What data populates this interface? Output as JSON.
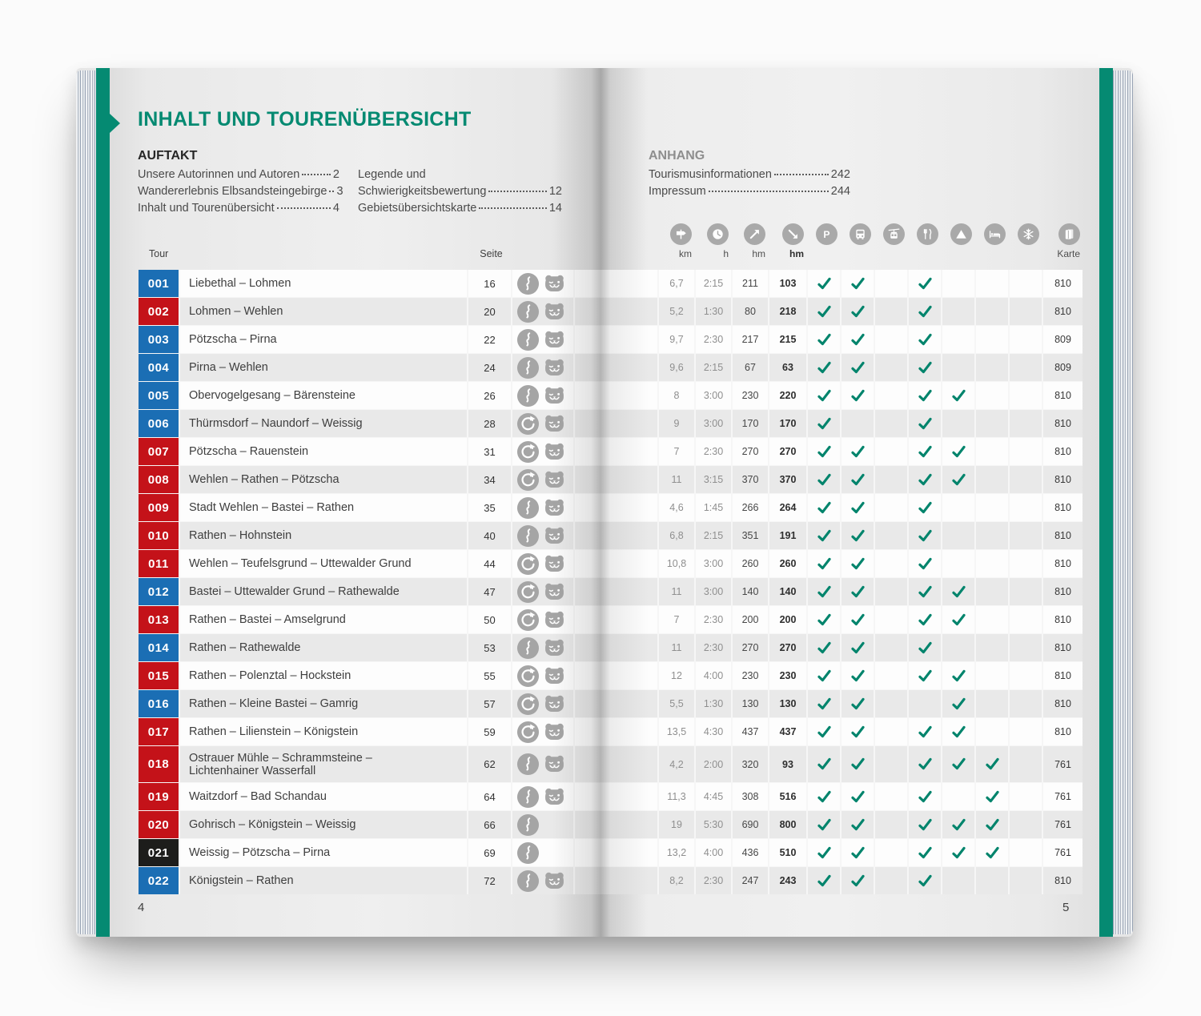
{
  "page": {
    "title": "INHALT UND TOURENÜBERSICHT",
    "left_page_number": "4",
    "right_page_number": "5"
  },
  "toc": {
    "auftakt_heading": "AUFTAKT",
    "col1": [
      {
        "label": "Unsere Autorinnen und Autoren",
        "page": "2"
      },
      {
        "label": "Wandererlebnis Elbsandsteingebirge",
        "page": "3"
      },
      {
        "label": "Inhalt und Tourenübersicht",
        "page": "4"
      }
    ],
    "col2_intro": "Legende und",
    "col2": [
      {
        "label": "Schwierigkeitsbewertung",
        "page": "12"
      },
      {
        "label": "Gebietsübersichtskarte",
        "page": "14"
      }
    ],
    "anhang_heading": "ANHANG",
    "anhang": [
      {
        "label": "Tourismusinformationen",
        "page": "242"
      },
      {
        "label": "Impressum",
        "page": "244"
      }
    ]
  },
  "table": {
    "tour_header": "Tour",
    "seite_header": "Seite",
    "metric_headers": [
      "km",
      "h",
      "hm",
      "hm"
    ],
    "karte_header": "Karte",
    "metric_icons": [
      "signpost",
      "clock",
      "ascent-arrow",
      "descent-arrow"
    ],
    "amenity_icons": [
      "parking",
      "bus",
      "cable-car",
      "restaurant",
      "mountain-peak",
      "bed",
      "snowflake"
    ],
    "karte_icon": "map",
    "rows": [
      {
        "nr": "001",
        "color": "blue",
        "name": "Liebethal – Lohmen",
        "seite": "16",
        "icons": [
          "linear",
          "bear"
        ],
        "km": "6,7",
        "h": "2:15",
        "up": "211",
        "down": "103",
        "checks": [
          true,
          true,
          false,
          true,
          false,
          false,
          false
        ],
        "karte": "810"
      },
      {
        "nr": "002",
        "color": "red",
        "name": "Lohmen – Wehlen",
        "seite": "20",
        "icons": [
          "linear",
          "bear"
        ],
        "km": "5,2",
        "h": "1:30",
        "up": "80",
        "down": "218",
        "checks": [
          true,
          true,
          false,
          true,
          false,
          false,
          false
        ],
        "karte": "810"
      },
      {
        "nr": "003",
        "color": "blue",
        "name": "Pötzscha – Pirna",
        "seite": "22",
        "icons": [
          "linear",
          "bear"
        ],
        "km": "9,7",
        "h": "2:30",
        "up": "217",
        "down": "215",
        "checks": [
          true,
          true,
          false,
          true,
          false,
          false,
          false
        ],
        "karte": "809"
      },
      {
        "nr": "004",
        "color": "blue",
        "name": "Pirna – Wehlen",
        "seite": "24",
        "icons": [
          "linear",
          "bear"
        ],
        "km": "9,6",
        "h": "2:15",
        "up": "67",
        "down": "63",
        "checks": [
          true,
          true,
          false,
          true,
          false,
          false,
          false
        ],
        "karte": "809"
      },
      {
        "nr": "005",
        "color": "blue",
        "name": "Obervogelgesang – Bärensteine",
        "seite": "26",
        "icons": [
          "linear",
          "bear"
        ],
        "km": "8",
        "h": "3:00",
        "up": "230",
        "down": "220",
        "checks": [
          true,
          true,
          false,
          true,
          true,
          false,
          false
        ],
        "karte": "810"
      },
      {
        "nr": "006",
        "color": "blue",
        "name": "Thürmsdorf – Naundorf – Weissig",
        "seite": "28",
        "icons": [
          "loop",
          "bear"
        ],
        "km": "9",
        "h": "3:00",
        "up": "170",
        "down": "170",
        "checks": [
          true,
          false,
          false,
          true,
          false,
          false,
          false
        ],
        "karte": "810"
      },
      {
        "nr": "007",
        "color": "red",
        "name": "Pötzscha – Rauenstein",
        "seite": "31",
        "icons": [
          "loop",
          "bear"
        ],
        "km": "7",
        "h": "2:30",
        "up": "270",
        "down": "270",
        "checks": [
          true,
          true,
          false,
          true,
          true,
          false,
          false
        ],
        "karte": "810"
      },
      {
        "nr": "008",
        "color": "red",
        "name": "Wehlen – Rathen – Pötzscha",
        "seite": "34",
        "icons": [
          "loop",
          "bear"
        ],
        "km": "11",
        "h": "3:15",
        "up": "370",
        "down": "370",
        "checks": [
          true,
          true,
          false,
          true,
          true,
          false,
          false
        ],
        "karte": "810"
      },
      {
        "nr": "009",
        "color": "red",
        "name": "Stadt Wehlen – Bastei – Rathen",
        "seite": "35",
        "icons": [
          "linear",
          "bear"
        ],
        "km": "4,6",
        "h": "1:45",
        "up": "266",
        "down": "264",
        "checks": [
          true,
          true,
          false,
          true,
          false,
          false,
          false
        ],
        "karte": "810"
      },
      {
        "nr": "010",
        "color": "red",
        "name": "Rathen – Hohnstein",
        "seite": "40",
        "icons": [
          "linear",
          "bear"
        ],
        "km": "6,8",
        "h": "2:15",
        "up": "351",
        "down": "191",
        "checks": [
          true,
          true,
          false,
          true,
          false,
          false,
          false
        ],
        "karte": "810"
      },
      {
        "nr": "011",
        "color": "red",
        "name": "Wehlen – Teufelsgrund – Uttewalder Grund",
        "seite": "44",
        "icons": [
          "loop",
          "bear"
        ],
        "km": "10,8",
        "h": "3:00",
        "up": "260",
        "down": "260",
        "checks": [
          true,
          true,
          false,
          true,
          false,
          false,
          false
        ],
        "karte": "810"
      },
      {
        "nr": "012",
        "color": "blue",
        "name": "Bastei – Uttewalder Grund – Rathewalde",
        "seite": "47",
        "icons": [
          "loop",
          "bear"
        ],
        "km": "11",
        "h": "3:00",
        "up": "140",
        "down": "140",
        "checks": [
          true,
          true,
          false,
          true,
          true,
          false,
          false
        ],
        "karte": "810"
      },
      {
        "nr": "013",
        "color": "red",
        "name": "Rathen – Bastei – Amselgrund",
        "seite": "50",
        "icons": [
          "loop",
          "bear"
        ],
        "km": "7",
        "h": "2:30",
        "up": "200",
        "down": "200",
        "checks": [
          true,
          true,
          false,
          true,
          true,
          false,
          false
        ],
        "karte": "810"
      },
      {
        "nr": "014",
        "color": "blue",
        "name": "Rathen – Rathewalde",
        "seite": "53",
        "icons": [
          "linear",
          "bear"
        ],
        "km": "11",
        "h": "2:30",
        "up": "270",
        "down": "270",
        "checks": [
          true,
          true,
          false,
          true,
          false,
          false,
          false
        ],
        "karte": "810"
      },
      {
        "nr": "015",
        "color": "red",
        "name": "Rathen – Polenztal – Hockstein",
        "seite": "55",
        "icons": [
          "loop",
          "bear"
        ],
        "km": "12",
        "h": "4:00",
        "up": "230",
        "down": "230",
        "checks": [
          true,
          true,
          false,
          true,
          true,
          false,
          false
        ],
        "karte": "810"
      },
      {
        "nr": "016",
        "color": "blue",
        "name": "Rathen – Kleine Bastei – Gamrig",
        "seite": "57",
        "icons": [
          "loop",
          "bear"
        ],
        "km": "5,5",
        "h": "1:30",
        "up": "130",
        "down": "130",
        "checks": [
          true,
          true,
          false,
          false,
          true,
          false,
          false
        ],
        "karte": "810"
      },
      {
        "nr": "017",
        "color": "red",
        "name": "Rathen – Lilienstein – Königstein",
        "seite": "59",
        "icons": [
          "loop",
          "bear"
        ],
        "km": "13,5",
        "h": "4:30",
        "up": "437",
        "down": "437",
        "checks": [
          true,
          true,
          false,
          true,
          true,
          false,
          false
        ],
        "karte": "810"
      },
      {
        "nr": "018",
        "color": "red",
        "name": "Ostrauer Mühle – Schrammsteine –",
        "name2": "Lichtenhainer Wasserfall",
        "seite": "62",
        "icons": [
          "linear",
          "bear"
        ],
        "km": "4,2",
        "h": "2:00",
        "up": "320",
        "down": "93",
        "checks": [
          true,
          true,
          false,
          true,
          true,
          true,
          false
        ],
        "karte": "761"
      },
      {
        "nr": "019",
        "color": "red",
        "name": "Waitzdorf – Bad Schandau",
        "seite": "64",
        "icons": [
          "linear",
          "bear"
        ],
        "km": "11,3",
        "h": "4:45",
        "up": "308",
        "down": "516",
        "checks": [
          true,
          true,
          false,
          true,
          false,
          true,
          false
        ],
        "karte": "761"
      },
      {
        "nr": "020",
        "color": "red",
        "name": "Gohrisch – Königstein – Weissig",
        "seite": "66",
        "icons": [
          "linear"
        ],
        "km": "19",
        "h": "5:30",
        "up": "690",
        "down": "800",
        "checks": [
          true,
          true,
          false,
          true,
          true,
          true,
          false
        ],
        "karte": "761"
      },
      {
        "nr": "021",
        "color": "black",
        "name": "Weissig – Pötzscha – Pirna",
        "seite": "69",
        "icons": [
          "linear"
        ],
        "km": "13,2",
        "h": "4:00",
        "up": "436",
        "down": "510",
        "checks": [
          true,
          true,
          false,
          true,
          true,
          true,
          false
        ],
        "karte": "761"
      },
      {
        "nr": "022",
        "color": "blue",
        "name": "Königstein – Rathen",
        "seite": "72",
        "icons": [
          "linear",
          "bear"
        ],
        "km": "8,2",
        "h": "2:30",
        "up": "247",
        "down": "243",
        "checks": [
          true,
          true,
          false,
          true,
          false,
          false,
          false
        ],
        "karte": "810"
      }
    ]
  },
  "colors": {
    "accent_teal": "#058a72",
    "check_green": "#00846c",
    "badge_blue": "#1b6eb4",
    "badge_red": "#c41219",
    "badge_black": "#1d1d1b",
    "icon_gray": "#a5a5a5"
  }
}
